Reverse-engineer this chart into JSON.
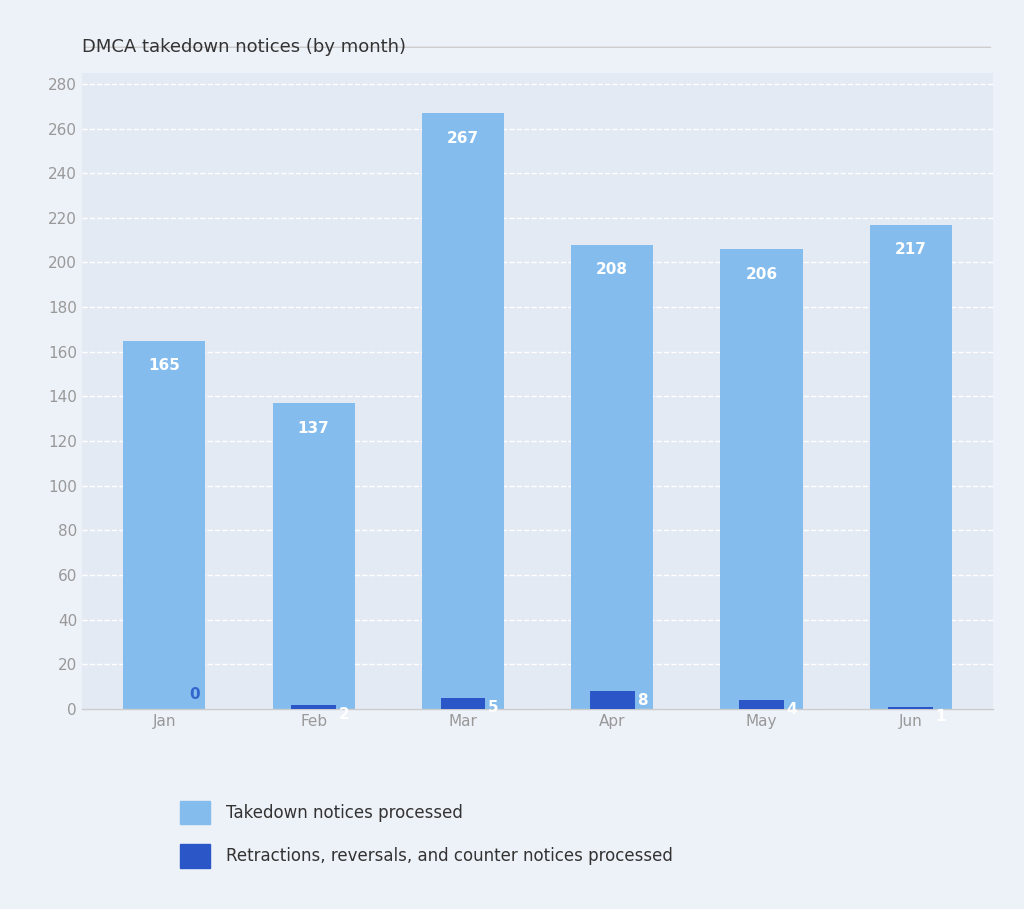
{
  "title": "DMCA takedown notices (by month)",
  "months": [
    "Jan",
    "Feb",
    "Mar",
    "Apr",
    "May",
    "Jun"
  ],
  "takedown_values": [
    165,
    137,
    267,
    208,
    206,
    217
  ],
  "retraction_values": [
    0,
    2,
    5,
    8,
    4,
    1
  ],
  "takedown_color": "#85BCEE",
  "retraction_color": "#2B56C8",
  "bar_label_color_takedown": "#ffffff",
  "retraction_label_color": "#3366CC",
  "background_color": "#EDF1F8",
  "plot_bg_color": "#E4EAF4",
  "grid_color": "#ffffff",
  "axis_color": "#cccccc",
  "title_color": "#333333",
  "tick_color": "#999999",
  "ylim": [
    0,
    285
  ],
  "yticks": [
    0,
    20,
    40,
    60,
    80,
    100,
    120,
    140,
    160,
    180,
    200,
    220,
    240,
    260,
    280
  ],
  "legend_label_takedown": "Takedown notices processed",
  "legend_label_retraction": "Retractions, reversals, and counter notices processed",
  "takedown_bar_width": 0.55,
  "retraction_bar_width": 0.3,
  "title_fontsize": 13,
  "tick_fontsize": 11,
  "legend_fontsize": 12,
  "bar_value_fontsize": 11
}
